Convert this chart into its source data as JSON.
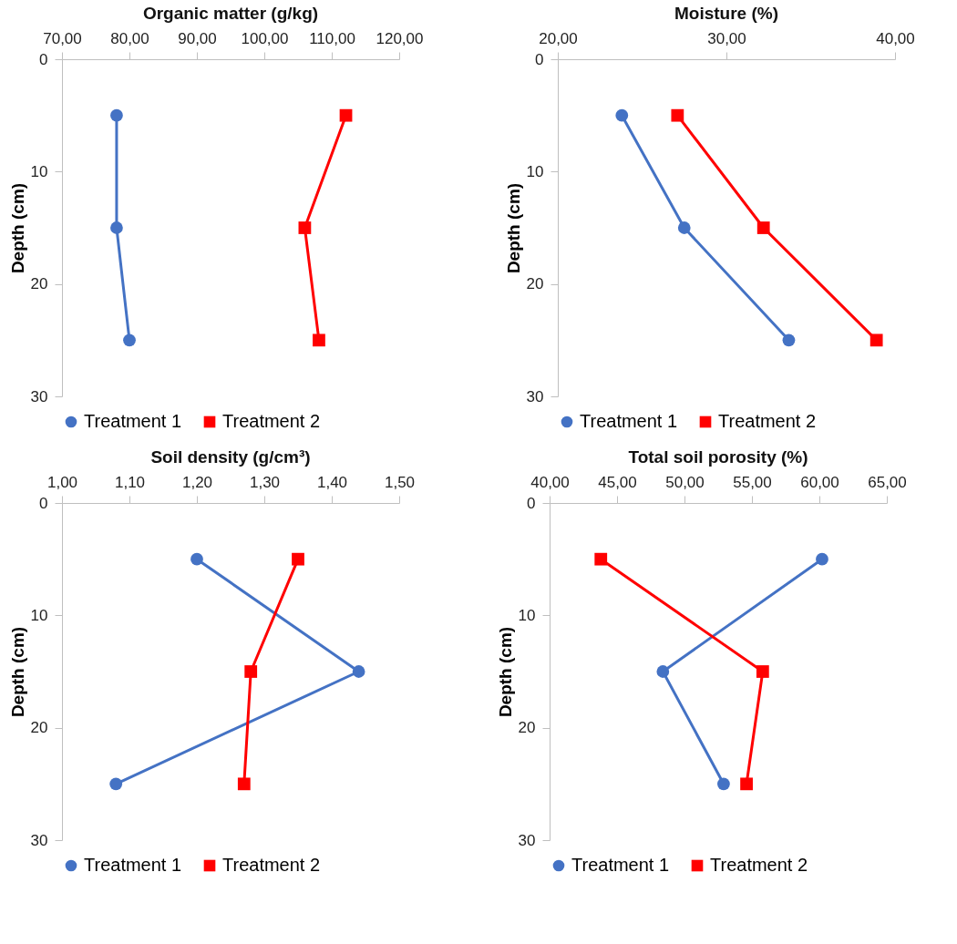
{
  "chart_data": [
    {
      "type": "line",
      "title": "Organic matter (g/kg)",
      "ylabel": "Depth  (cm)",
      "xlim": [
        70,
        120
      ],
      "xticks": [
        {
          "value": 70,
          "label": "70,00"
        },
        {
          "value": 80,
          "label": "80,00"
        },
        {
          "value": 90,
          "label": "90,00"
        },
        {
          "value": 100,
          "label": "100,00"
        },
        {
          "value": 110,
          "label": "110,00"
        },
        {
          "value": 120,
          "label": "120,00"
        }
      ],
      "ylim": [
        30,
        0
      ],
      "yticks": [
        0,
        10,
        20,
        30
      ],
      "grid": false,
      "legend": "bottom",
      "line_style": "solid",
      "series": [
        {
          "name": "Treatment 1",
          "color": "#4472c4",
          "marker": "circle",
          "x": [
            78.1,
            78.1,
            80.0
          ],
          "values": [
            5,
            15,
            25
          ]
        },
        {
          "name": "Treatment 2",
          "color": "#ff0000",
          "marker": "square",
          "x": [
            112.1,
            106.0,
            108.1
          ],
          "values": [
            5,
            15,
            25
          ]
        }
      ]
    },
    {
      "type": "line",
      "title": "Moisture (%)",
      "ylabel": "Depth  (cm)",
      "xlim": [
        20,
        40
      ],
      "xticks": [
        {
          "value": 20,
          "label": "20,00"
        },
        {
          "value": 30,
          "label": "30,00"
        },
        {
          "value": 40,
          "label": "40,00"
        }
      ],
      "ylim": [
        30,
        0
      ],
      "yticks": [
        0,
        10,
        20,
        30
      ],
      "grid": false,
      "legend": "bottom",
      "line_style": "solid",
      "series": [
        {
          "name": "Treatment 1",
          "color": "#4472c4",
          "marker": "circle",
          "x": [
            23.8,
            27.5,
            33.7
          ],
          "values": [
            5,
            15,
            25
          ]
        },
        {
          "name": "Treatment 2",
          "color": "#ff0000",
          "marker": "square",
          "x": [
            27.1,
            32.2,
            38.9
          ],
          "values": [
            5,
            15,
            25
          ]
        }
      ]
    },
    {
      "type": "line",
      "title": "Soil density (g/cm³)",
      "ylabel": "Depth  (cm)",
      "xlim": [
        1.0,
        1.5
      ],
      "xticks": [
        {
          "value": 1.0,
          "label": "1,00"
        },
        {
          "value": 1.1,
          "label": "1,10"
        },
        {
          "value": 1.2,
          "label": "1,20"
        },
        {
          "value": 1.3,
          "label": "1,30"
        },
        {
          "value": 1.4,
          "label": "1,40"
        },
        {
          "value": 1.5,
          "label": "1,50"
        }
      ],
      "ylim": [
        30,
        0
      ],
      "yticks": [
        0,
        10,
        20,
        30
      ],
      "grid": false,
      "legend": "bottom",
      "line_style": "solid",
      "series": [
        {
          "name": "Treatment 1",
          "color": "#4472c4",
          "marker": "circle",
          "x": [
            1.2,
            1.44,
            1.08
          ],
          "values": [
            5,
            15,
            25
          ]
        },
        {
          "name": "Treatment 2",
          "color": "#ff0000",
          "marker": "square",
          "x": [
            1.35,
            1.28,
            1.27
          ],
          "values": [
            5,
            15,
            25
          ]
        }
      ]
    },
    {
      "type": "line",
      "title": "Total soil porosity (%)",
      "ylabel": "Depth  (cm)",
      "xlim": [
        40,
        65
      ],
      "xticks": [
        {
          "value": 40,
          "label": "40,00"
        },
        {
          "value": 45,
          "label": "45,00"
        },
        {
          "value": 50,
          "label": "50,00"
        },
        {
          "value": 55,
          "label": "55,00"
        },
        {
          "value": 60,
          "label": "60,00"
        },
        {
          "value": 65,
          "label": "65,00"
        }
      ],
      "ylim": [
        30,
        0
      ],
      "yticks": [
        0,
        10,
        20,
        30
      ],
      "grid": false,
      "legend": "bottom",
      "line_style": "solid",
      "series": [
        {
          "name": "Treatment 1",
          "color": "#4472c4",
          "marker": "circle",
          "x": [
            60.2,
            48.4,
            52.9
          ],
          "values": [
            5,
            15,
            25
          ]
        },
        {
          "name": "Treatment 2",
          "color": "#ff0000",
          "marker": "square",
          "x": [
            43.8,
            55.8,
            54.6
          ],
          "values": [
            5,
            15,
            25
          ]
        }
      ]
    }
  ]
}
